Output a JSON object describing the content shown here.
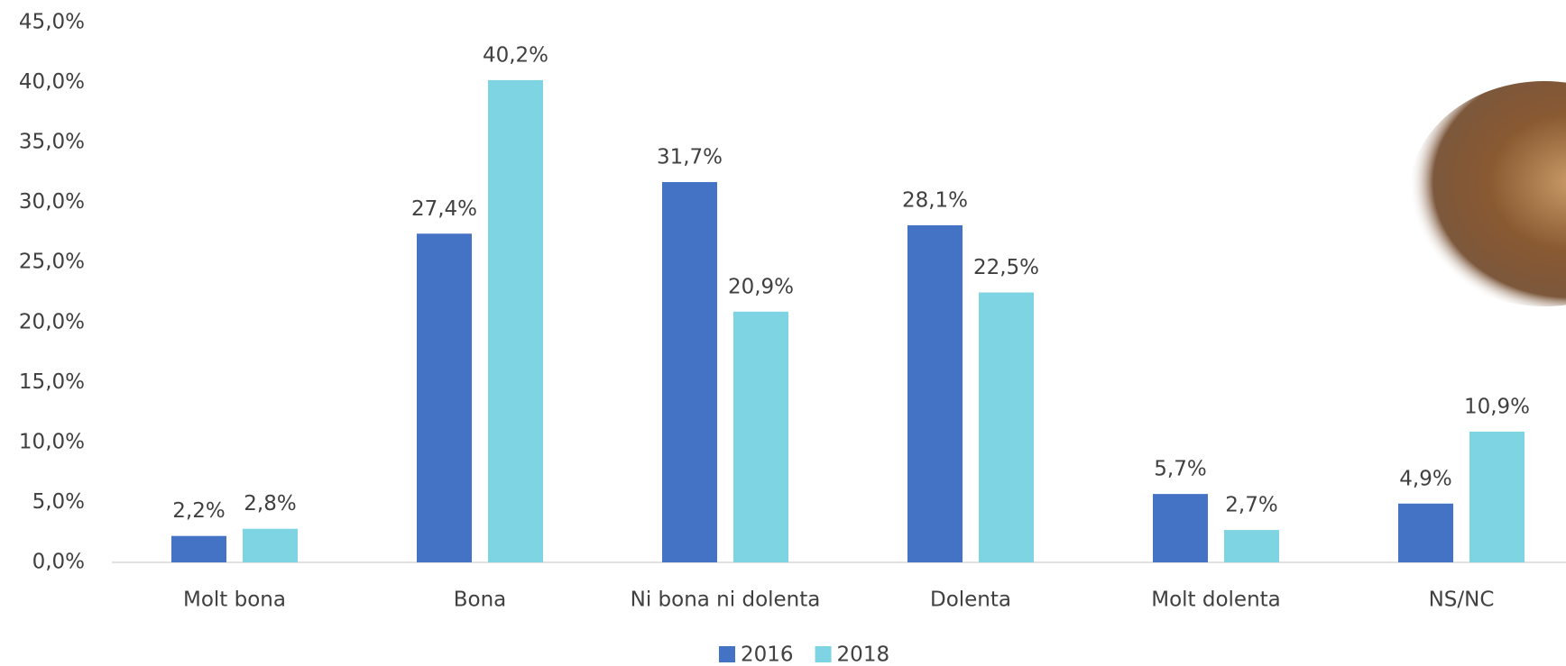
{
  "chart_data": {
    "type": "bar",
    "categories": [
      "Molt bona",
      "Bona",
      "Ni bona ni dolenta",
      "Dolenta",
      "Molt dolenta",
      "NS/NC"
    ],
    "series": [
      {
        "name": "2016",
        "color": "#4472c4",
        "values": [
          2.2,
          27.4,
          31.7,
          28.1,
          5.7,
          4.9
        ],
        "value_labels": [
          "2,2%",
          "27,4%",
          "31,7%",
          "28,1%",
          "5,7%",
          "4,9%"
        ]
      },
      {
        "name": "2018",
        "color": "#7fd4e3",
        "values": [
          2.8,
          40.2,
          20.9,
          22.5,
          2.7,
          10.9
        ],
        "value_labels": [
          "2,8%",
          "40,2%",
          "20,9%",
          "22,5%",
          "2,7%",
          "10,9%"
        ]
      }
    ],
    "ylim": [
      0,
      45
    ],
    "yticks": [
      {
        "value": 0,
        "label": "0,0%"
      },
      {
        "value": 5,
        "label": "5,0%"
      },
      {
        "value": 10,
        "label": "10,0%"
      },
      {
        "value": 15,
        "label": "15,0%"
      },
      {
        "value": 20,
        "label": "20,0%"
      },
      {
        "value": 25,
        "label": "25,0%"
      },
      {
        "value": 30,
        "label": "30,0%"
      },
      {
        "value": 35,
        "label": "35,0%"
      },
      {
        "value": 40,
        "label": "40,0%"
      },
      {
        "value": 45,
        "label": "45,0%"
      }
    ],
    "grid": false,
    "legend": "bottom"
  }
}
